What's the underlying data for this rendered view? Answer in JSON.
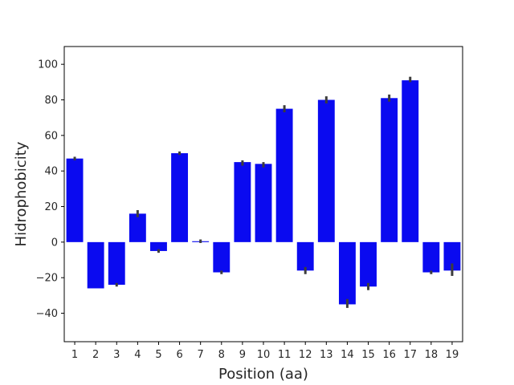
{
  "chart_data": {
    "type": "bar",
    "title": "",
    "xlabel": "Position (aa)",
    "ylabel": "Hidrophobicity",
    "categories": [
      "1",
      "2",
      "3",
      "4",
      "5",
      "6",
      "7",
      "8",
      "9",
      "10",
      "11",
      "12",
      "13",
      "14",
      "15",
      "16",
      "17",
      "18",
      "19"
    ],
    "values": [
      47,
      -26,
      -24,
      16,
      -5,
      50,
      0.5,
      -17,
      45,
      44,
      75,
      -16,
      80,
      -35,
      -25,
      81,
      91,
      -17,
      -16
    ],
    "error_low": [
      46,
      -26,
      -25,
      14,
      -6,
      49,
      -0.5,
      -18,
      43,
      42,
      73,
      -18,
      78,
      -37,
      -27,
      79,
      90,
      -18,
      -19
    ],
    "error_high": [
      48,
      -26,
      -23,
      18,
      -4,
      51,
      1.5,
      -16,
      46,
      45,
      77,
      -14,
      82,
      -32,
      -23,
      83,
      93,
      -16,
      -12
    ],
    "ylim": [
      -56,
      110
    ],
    "yticks": [
      -40,
      -20,
      0,
      20,
      40,
      60,
      80,
      100
    ],
    "bar_color": "#0a0af0",
    "error_color": "#3c3c3c",
    "grid": false,
    "legend": false
  }
}
